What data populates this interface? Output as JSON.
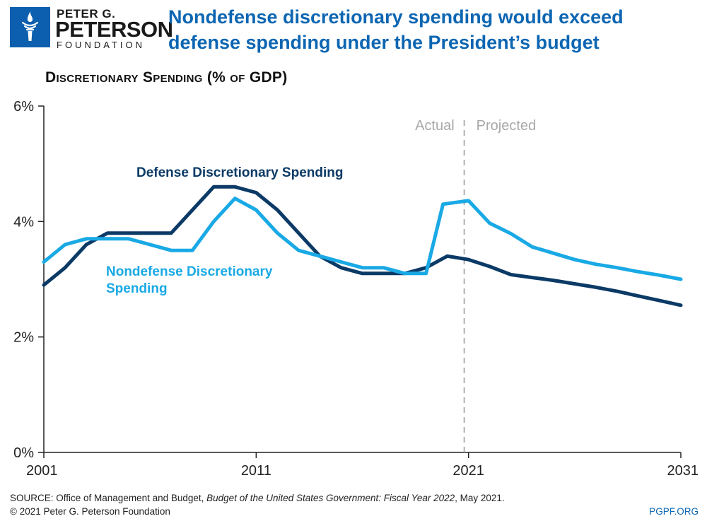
{
  "logo": {
    "line1": "PETER G.",
    "line2": "PETERSON",
    "line3": "FOUNDATION"
  },
  "headline": "Nondefense discretionary spending would exceed defense spending under the President’s budget",
  "source": {
    "prefix": "SOURCE: Office of Management and Budget, ",
    "doc": "Budget of the United States Government: Fiscal Year 2022",
    "suffix": ", May 2021."
  },
  "copyright": "© 2021 Peter G. Peterson Foundation",
  "site": "PGPF.ORG",
  "colors": {
    "brand": "#0d66b2",
    "defense": "#0b3a66",
    "nondefense": "#19a9e5",
    "divider": "#b0b0b0"
  },
  "chart_data": {
    "type": "line",
    "title": "Discretionary Spending (% of GDP)",
    "xlabel": "",
    "ylabel": "",
    "xlim": [
      2001,
      2031
    ],
    "ylim": [
      0,
      6
    ],
    "x_ticks": [
      {
        "value": 2001,
        "label": "2001"
      },
      {
        "value": 2011,
        "label": "2011"
      },
      {
        "value": 2021,
        "label": "2021"
      },
      {
        "value": 2031,
        "label": "2031"
      }
    ],
    "y_ticks": [
      {
        "value": 0,
        "label": "0%"
      },
      {
        "value": 2,
        "label": "2%"
      },
      {
        "value": 4,
        "label": "4%"
      },
      {
        "value": 6,
        "label": "6%"
      }
    ],
    "divider": {
      "x": 2020.8,
      "left_label": "Actual",
      "right_label": "Projected"
    },
    "series": [
      {
        "name": "Defense Discretionary Spending",
        "label_lines": [
          "Defense Discretionary Spending"
        ],
        "color": "#0b3a66",
        "points": [
          [
            2001,
            2.9
          ],
          [
            2002,
            3.2
          ],
          [
            2003,
            3.6
          ],
          [
            2004,
            3.8
          ],
          [
            2005,
            3.8
          ],
          [
            2006,
            3.8
          ],
          [
            2007,
            3.8
          ],
          [
            2008,
            4.2
          ],
          [
            2009,
            4.6
          ],
          [
            2010,
            4.6
          ],
          [
            2011,
            4.5
          ],
          [
            2012,
            4.2
          ],
          [
            2013,
            3.8
          ],
          [
            2014,
            3.4
          ],
          [
            2015,
            3.2
          ],
          [
            2016,
            3.1
          ],
          [
            2017,
            3.1
          ],
          [
            2018,
            3.1
          ],
          [
            2019,
            3.2
          ],
          [
            2020,
            3.4
          ],
          [
            2021,
            3.34
          ],
          [
            2022,
            3.22
          ],
          [
            2023,
            3.08
          ],
          [
            2024,
            3.03
          ],
          [
            2025,
            2.98
          ],
          [
            2026,
            2.92
          ],
          [
            2027,
            2.86
          ],
          [
            2028,
            2.79
          ],
          [
            2029,
            2.71
          ],
          [
            2030,
            2.63
          ],
          [
            2031,
            2.55
          ]
        ]
      },
      {
        "name": "Nondefense Discretionary Spending",
        "label_lines": [
          "Nondefense Discretionary",
          "Spending"
        ],
        "color": "#19a9e5",
        "points": [
          [
            2001,
            3.3
          ],
          [
            2002,
            3.6
          ],
          [
            2003,
            3.7
          ],
          [
            2004,
            3.7
          ],
          [
            2005,
            3.7
          ],
          [
            2006,
            3.6
          ],
          [
            2007,
            3.5
          ],
          [
            2008,
            3.5
          ],
          [
            2009,
            4.0
          ],
          [
            2010,
            4.4
          ],
          [
            2011,
            4.2
          ],
          [
            2012,
            3.8
          ],
          [
            2013,
            3.5
          ],
          [
            2014,
            3.4
          ],
          [
            2015,
            3.3
          ],
          [
            2016,
            3.2
          ],
          [
            2017,
            3.2
          ],
          [
            2018,
            3.1
          ],
          [
            2019,
            3.1
          ],
          [
            2019.8,
            4.3
          ],
          [
            2021,
            4.36
          ],
          [
            2022,
            3.97
          ],
          [
            2023,
            3.79
          ],
          [
            2024,
            3.56
          ],
          [
            2025,
            3.45
          ],
          [
            2026,
            3.34
          ],
          [
            2027,
            3.26
          ],
          [
            2028,
            3.2
          ],
          [
            2029,
            3.13
          ],
          [
            2030,
            3.07
          ],
          [
            2031,
            3.0
          ]
        ]
      }
    ]
  }
}
